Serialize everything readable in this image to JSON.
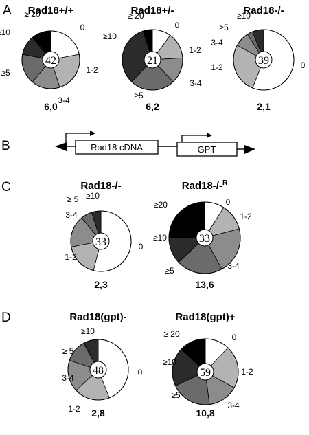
{
  "panels": {
    "A": "A",
    "B": "B",
    "C": "C",
    "D": "D"
  },
  "construct": {
    "box1": "Rad18 cDNA",
    "box2": "GPT"
  },
  "colors": {
    "0": "#ffffff",
    "1-2": "#b3b3b3",
    "3-4": "#8c8c8c",
    "≥5": "#6b6b6b",
    "≥10": "#2b2b2b",
    "≥20": "#000000"
  },
  "chart_data": [
    {
      "type": "pie",
      "title": "Rad18+/+",
      "n": "42",
      "stat": "6,0",
      "categories": [
        "0",
        "1-2",
        "3-4",
        "≥5",
        "≥10",
        "≥20"
      ],
      "labels": [
        "0",
        "1-2",
        "3-4",
        "≥5",
        "≥10",
        "≥ 20"
      ],
      "values": [
        22,
        23,
        16,
        17,
        11,
        11
      ]
    },
    {
      "type": "pie",
      "title": "Rad18+/-",
      "n": "21",
      "stat": "6,2",
      "categories": [
        "0",
        "1-2",
        "3-4",
        "≥5",
        "≥10",
        "≥20"
      ],
      "labels": [
        "0",
        "1-2",
        "3-4",
        "≥5",
        "≥10",
        "≥ 20"
      ],
      "values": [
        10,
        14,
        14,
        24,
        33,
        5
      ]
    },
    {
      "type": "pie",
      "title": "Rad18-/-",
      "n": "39",
      "stat": "2,1",
      "categories": [
        "0",
        "1-2",
        "3-4",
        "≥5",
        "≥10"
      ],
      "labels": [
        "0",
        "1-2",
        "3-4",
        "≥5",
        "≥10"
      ],
      "values": [
        56,
        27,
        8,
        3,
        6
      ]
    },
    {
      "type": "pie",
      "title": "Rad18-/-",
      "n": "33",
      "stat": "2,3",
      "categories": [
        "0",
        "1-2",
        "3-4",
        "≥5",
        "≥10"
      ],
      "labels": [
        "0",
        "1-2",
        "3-4",
        "≥ 5",
        "≥10"
      ],
      "values": [
        54,
        18,
        17,
        6,
        5
      ]
    },
    {
      "type": "pie",
      "title": "Rad18-/-",
      "title_sup": "R",
      "n": "33",
      "stat": "13,6",
      "categories": [
        "0",
        "1-2",
        "3-4",
        "≥5",
        "≥10",
        "≥20"
      ],
      "labels": [
        "0",
        "1-2",
        "3-4",
        "≥5",
        "≥10",
        "≥20"
      ],
      "values": [
        9,
        12,
        21,
        21,
        12,
        25
      ]
    },
    {
      "type": "pie",
      "title": "Rad18(gpt)-",
      "n": "48",
      "stat": "2,8",
      "categories": [
        "0",
        "1-2",
        "3-4",
        "≥5",
        "≥10"
      ],
      "labels": [
        "0",
        "1-2",
        "3-4",
        "≥ 5",
        "≥10"
      ],
      "values": [
        44,
        19,
        17,
        12,
        8
      ]
    },
    {
      "type": "pie",
      "title": "Rad18(gpt)+",
      "n": "59",
      "stat": "10,8",
      "categories": [
        "0",
        "1-2",
        "3-4",
        "≥5",
        "≥10",
        "≥20"
      ],
      "labels": [
        "0",
        "1-2",
        "3-4",
        "≥5",
        "≥10",
        "≥ 20"
      ],
      "values": [
        12,
        21,
        15,
        20,
        19,
        13
      ]
    }
  ]
}
